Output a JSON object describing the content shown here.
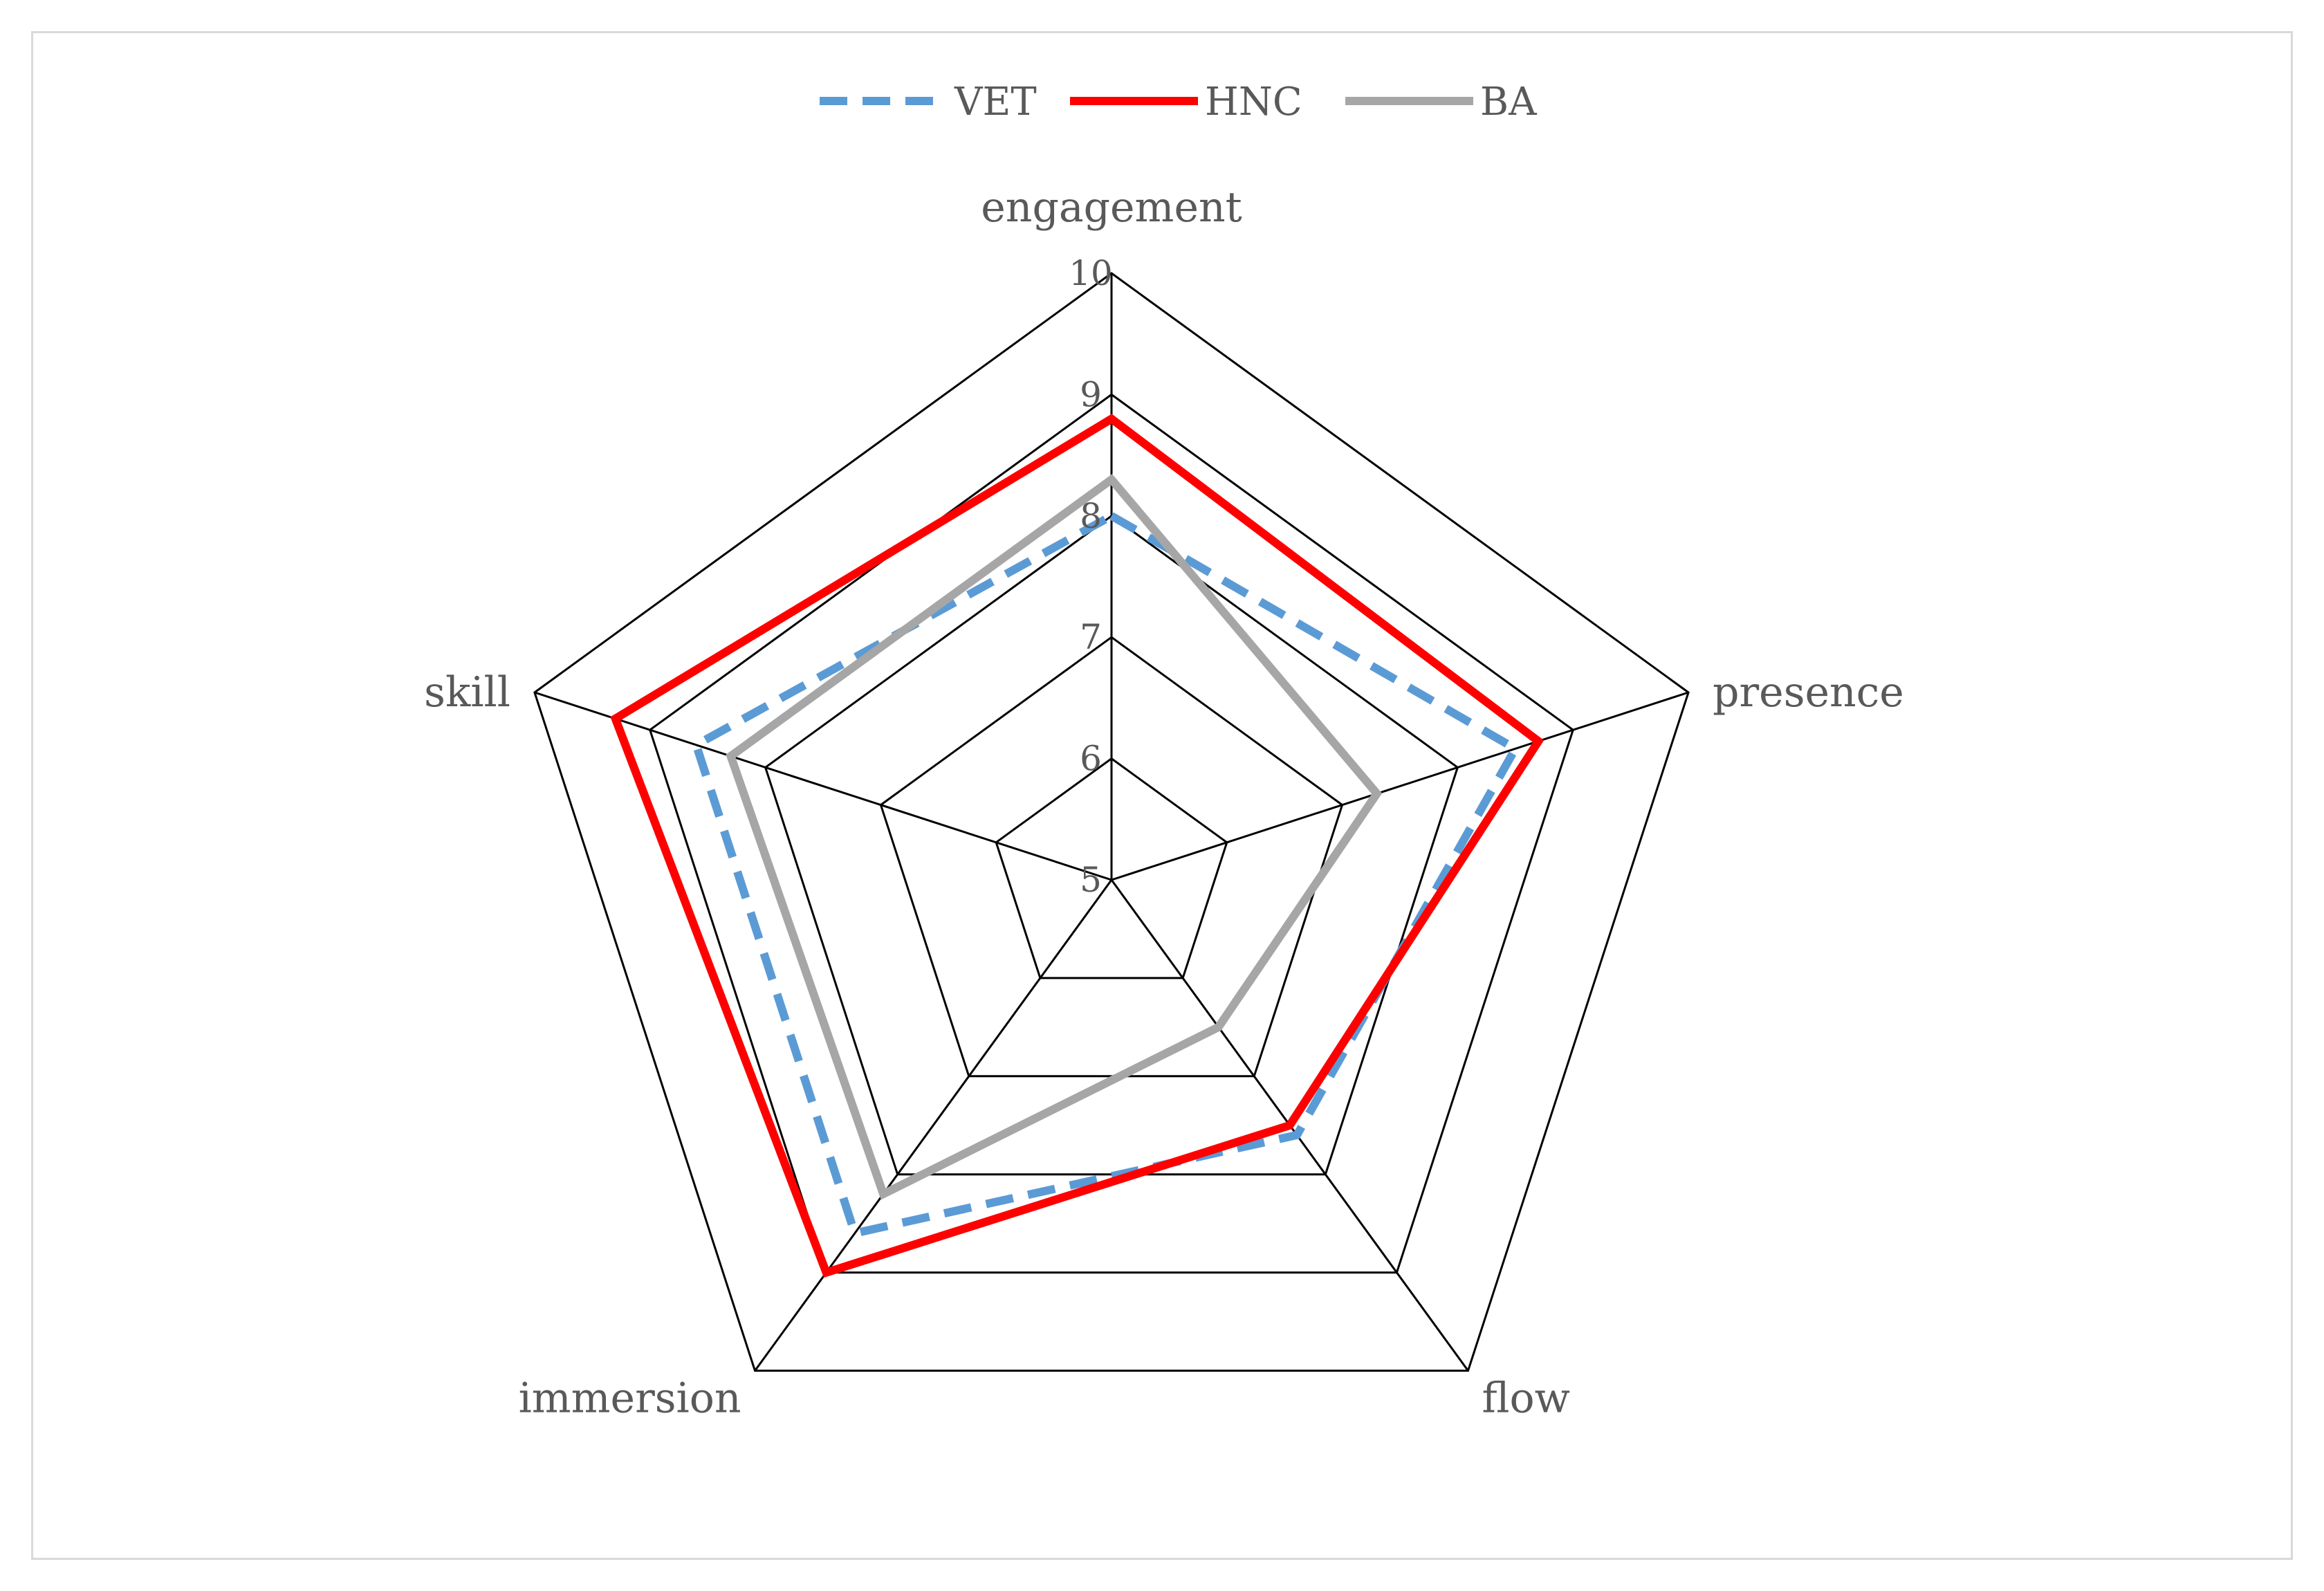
{
  "chart_data": {
    "type": "radar",
    "axes": [
      "engagement",
      "presence",
      "flow",
      "immersion",
      "skill"
    ],
    "rlim": [
      5,
      10
    ],
    "ticks": [
      "5",
      "6",
      "7",
      "8",
      "9",
      "10"
    ],
    "grid": true,
    "legend_position": "top",
    "series": [
      {
        "name": "VET",
        "values": [
          8.0,
          8.5,
          7.6,
          8.6,
          8.6
        ],
        "color": "#5b9bd5",
        "dash": true
      },
      {
        "name": "HNC",
        "values": [
          8.8,
          8.7,
          7.5,
          9.0,
          9.3
        ],
        "color": "#ff0000",
        "dash": false
      },
      {
        "name": "BA",
        "values": [
          8.3,
          7.3,
          6.5,
          8.2,
          8.3
        ],
        "color": "#a6a6a6",
        "dash": false
      }
    ]
  }
}
